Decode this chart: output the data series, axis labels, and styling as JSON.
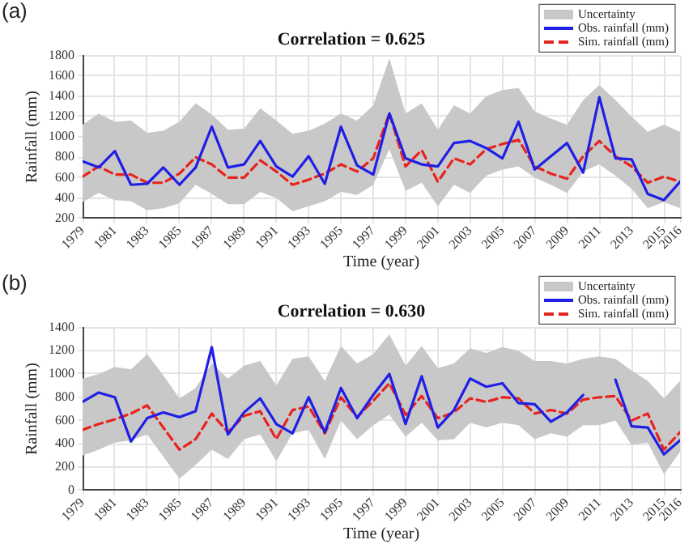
{
  "chart_data": [
    {
      "type": "line",
      "title": "Correlation = 0.625",
      "xlabel": "Time (year)",
      "ylabel": "Rainfall (mm)",
      "annotations": [
        "(a)"
      ],
      "grid": true,
      "legend": "top right",
      "x": [
        1979,
        1980,
        1981,
        1982,
        1983,
        1984,
        1985,
        1986,
        1987,
        1988,
        1989,
        1990,
        1991,
        1992,
        1993,
        1994,
        1995,
        1996,
        1997,
        1998,
        1999,
        2000,
        2001,
        2002,
        2003,
        2004,
        2005,
        2006,
        2007,
        2008,
        2009,
        2010,
        2011,
        2012,
        2013,
        2014,
        2015,
        2016
      ],
      "xlim": [
        1979,
        2016
      ],
      "xticks": [
        1979,
        1981,
        1983,
        1985,
        1987,
        1989,
        1991,
        1993,
        1995,
        1997,
        1999,
        2001,
        2003,
        2005,
        2007,
        2009,
        2011,
        2013,
        2015,
        2016
      ],
      "ylim": [
        200,
        1800
      ],
      "yticks": [
        200,
        400,
        600,
        800,
        1000,
        1200,
        1400,
        1600,
        1800
      ],
      "series": [
        {
          "name": "Uncertainty",
          "type": "area",
          "color": "#c8c8c8",
          "values": [
            null,
            null,
            null,
            null,
            null,
            null,
            null,
            null,
            null,
            null,
            null,
            null,
            null,
            null,
            null,
            null,
            null,
            null,
            null,
            null,
            null,
            null,
            null,
            null,
            null,
            null,
            null,
            null,
            null,
            null,
            null,
            null,
            null,
            null,
            null,
            null,
            null,
            null
          ],
          "lower": [
            360,
            450,
            380,
            370,
            280,
            300,
            350,
            530,
            440,
            340,
            340,
            460,
            400,
            270,
            320,
            370,
            460,
            430,
            530,
            880,
            470,
            550,
            320,
            530,
            450,
            620,
            680,
            710,
            600,
            530,
            450,
            660,
            730,
            620,
            490,
            300,
            360,
            300
          ],
          "upper": [
            1120,
            1230,
            1150,
            1160,
            1040,
            1060,
            1150,
            1330,
            1220,
            1070,
            1080,
            1280,
            1160,
            1030,
            1060,
            1130,
            1230,
            1160,
            1310,
            1770,
            1230,
            1330,
            1070,
            1310,
            1230,
            1400,
            1460,
            1480,
            1250,
            1180,
            1120,
            1360,
            1510,
            1360,
            1200,
            1050,
            1120,
            1050
          ]
        },
        {
          "name": "Obs. rainfall (mm)",
          "type": "line",
          "color": "#1f1fe6",
          "line_style": "solid",
          "values": [
            760,
            700,
            860,
            530,
            540,
            700,
            530,
            700,
            1100,
            700,
            730,
            960,
            710,
            610,
            810,
            540,
            1100,
            720,
            630,
            1230,
            790,
            730,
            710,
            940,
            960,
            890,
            790,
            1150,
            680,
            810,
            940,
            650,
            1390,
            790,
            780,
            440,
            380,
            560
          ]
        },
        {
          "name": "Sim. rainfall (mm)",
          "type": "line",
          "color": "#e8231e",
          "line_style": "dashed",
          "values": [
            610,
            710,
            630,
            630,
            550,
            550,
            640,
            800,
            730,
            600,
            600,
            770,
            660,
            530,
            580,
            640,
            730,
            660,
            790,
            1230,
            710,
            870,
            560,
            790,
            730,
            880,
            930,
            970,
            710,
            640,
            590,
            810,
            960,
            810,
            710,
            550,
            610,
            560
          ]
        }
      ]
    },
    {
      "type": "line",
      "title": "Correlation = 0.630",
      "xlabel": "Time (year)",
      "ylabel": "Rainfall (mm)",
      "annotations": [
        "(b)"
      ],
      "grid": true,
      "legend": "top right",
      "x": [
        1979,
        1980,
        1981,
        1982,
        1983,
        1984,
        1985,
        1986,
        1987,
        1988,
        1989,
        1990,
        1991,
        1992,
        1993,
        1994,
        1995,
        1996,
        1997,
        1998,
        1999,
        2000,
        2001,
        2002,
        2003,
        2004,
        2005,
        2006,
        2007,
        2008,
        2009,
        2010,
        2011,
        2012,
        2013,
        2014,
        2015,
        2016
      ],
      "xlim": [
        1979,
        2016
      ],
      "xticks": [
        1979,
        1981,
        1983,
        1985,
        1987,
        1989,
        1991,
        1993,
        1995,
        1997,
        1999,
        2001,
        2003,
        2005,
        2007,
        2009,
        2011,
        2013,
        2015,
        2016
      ],
      "ylim": [
        0,
        1400
      ],
      "yticks": [
        0,
        200,
        400,
        600,
        800,
        1000,
        1200,
        1400
      ],
      "series": [
        {
          "name": "Uncertainty",
          "type": "area",
          "color": "#c8c8c8",
          "values": [
            null,
            null,
            null,
            null,
            null,
            null,
            null,
            null,
            null,
            null,
            null,
            null,
            null,
            null,
            null,
            null,
            null,
            null,
            null,
            null,
            null,
            null,
            null,
            null,
            null,
            null,
            null,
            null,
            null,
            null,
            null,
            null,
            null,
            null,
            null,
            null,
            null,
            null
          ],
          "lower": [
            300,
            350,
            410,
            430,
            480,
            290,
            100,
            220,
            350,
            270,
            440,
            480,
            250,
            490,
            520,
            270,
            600,
            440,
            560,
            650,
            460,
            580,
            430,
            440,
            580,
            540,
            580,
            560,
            440,
            490,
            460,
            560,
            560,
            600,
            390,
            410,
            140,
            330
          ],
          "upper": [
            960,
            1000,
            1060,
            1040,
            1170,
            990,
            790,
            880,
            1090,
            960,
            1070,
            1110,
            900,
            1130,
            1150,
            940,
            1240,
            1090,
            1170,
            1340,
            1070,
            1240,
            1050,
            1090,
            1220,
            1180,
            1230,
            1200,
            1110,
            1110,
            1090,
            1130,
            1150,
            1130,
            1030,
            940,
            790,
            940
          ]
        },
        {
          "name": "Obs. rainfall (mm)",
          "type": "line",
          "color": "#1f1fe6",
          "line_style": "solid",
          "values": [
            760,
            840,
            800,
            420,
            620,
            670,
            630,
            680,
            1230,
            480,
            670,
            790,
            570,
            490,
            800,
            500,
            880,
            620,
            820,
            1000,
            570,
            980,
            540,
            690,
            960,
            890,
            920,
            750,
            740,
            590,
            670,
            820,
            null,
            950,
            550,
            540,
            310,
            430
          ]
        },
        {
          "name": "Sim. rainfall (mm)",
          "type": "line",
          "color": "#e8231e",
          "line_style": "dashed",
          "values": [
            520,
            570,
            610,
            660,
            730,
            540,
            350,
            440,
            660,
            500,
            640,
            680,
            440,
            690,
            720,
            490,
            800,
            630,
            770,
            920,
            650,
            810,
            620,
            670,
            790,
            760,
            800,
            790,
            660,
            690,
            660,
            780,
            800,
            810,
            600,
            660,
            350,
            500
          ]
        }
      ]
    }
  ]
}
